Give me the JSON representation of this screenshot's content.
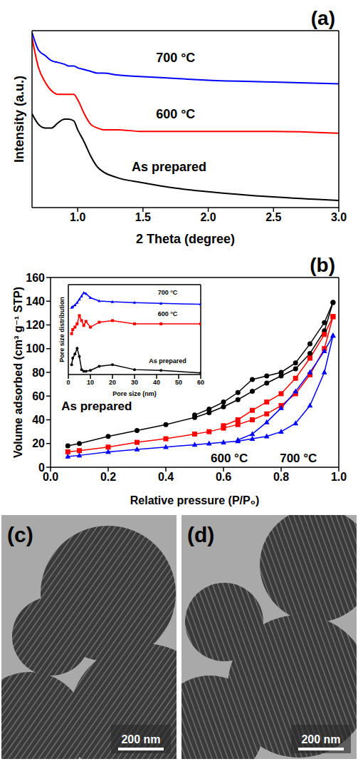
{
  "chart_data": [
    {
      "type": "line",
      "panel": "(a)",
      "xlabel": "2 Theta (degree)",
      "ylabel": "Intensity (a.u.)",
      "x": [
        0.65,
        0.7,
        0.75,
        0.8,
        0.85,
        0.9,
        0.93,
        0.97,
        1.0,
        1.05,
        1.1,
        1.15,
        1.2,
        1.3,
        1.5,
        1.75,
        2.0,
        2.5,
        3.0
      ],
      "series": [
        {
          "color": "#0000ff",
          "values": [
            99,
            89,
            86,
            83,
            82,
            81,
            80,
            80,
            79,
            78,
            77,
            76,
            76,
            75,
            74,
            73,
            72,
            71,
            70
          ]
        },
        {
          "color": "#ff0000",
          "values": [
            96,
            79,
            71,
            66,
            64,
            64,
            64,
            64,
            61,
            53,
            47,
            45,
            44,
            44,
            43,
            43,
            43,
            43,
            42
          ]
        },
        {
          "color": "#000000",
          "values": [
            53,
            47,
            45,
            45,
            48,
            50,
            50,
            49,
            44,
            37,
            29,
            23,
            20,
            17,
            14,
            11,
            9,
            6,
            4
          ]
        }
      ],
      "xlim": [
        0.65,
        3.0
      ],
      "xticks": [
        {
          "value": 1,
          "label": "1.0"
        },
        1.5,
        {
          "value": 2,
          "label": "2.0"
        },
        2.5,
        {
          "value": 3,
          "label": "3.0"
        }
      ],
      "ylim": [
        0,
        100
      ],
      "yticks": [],
      "tick_labels": "x",
      "annotations": [
        {
          "text": "700 °C",
          "x": 1.75,
          "y": 85
        },
        {
          "text": "600 °C",
          "x": 1.75,
          "y": 53
        },
        {
          "text": "As prepared",
          "x": 1.7,
          "y": 23
        }
      ]
    },
    {
      "type": "line",
      "panel": "(b)",
      "xlabel": "Relative pressure (P/P₀)",
      "ylabel": "Volume adsorbed (cm³ g⁻¹ STP)",
      "x": [
        0.06,
        0.1,
        0.2,
        0.3,
        0.4,
        0.5,
        0.55,
        0.6,
        0.65,
        0.7,
        0.75,
        0.8,
        0.85,
        0.9,
        0.95,
        0.98
      ],
      "series": [
        {
          "color": "#000000",
          "marker": "circle",
          "values": [
            18,
            20,
            26,
            31,
            36,
            42,
            46,
            51,
            57,
            64,
            71,
            77,
            83,
            96,
            115,
            139
          ],
          "desorption": [
            null,
            null,
            null,
            null,
            null,
            44,
            49,
            55,
            63,
            74,
            77,
            80,
            88,
            104,
            122,
            139
          ]
        },
        {
          "color": "#ff0000",
          "marker": "square",
          "values": [
            13,
            14,
            17,
            21,
            24,
            28,
            30,
            33,
            36,
            40,
            45,
            52,
            62,
            78,
            100,
            127
          ],
          "desorption": [
            null,
            null,
            null,
            null,
            null,
            null,
            null,
            35,
            40,
            48,
            55,
            62,
            75,
            92,
            112,
            127
          ]
        },
        {
          "color": "#0000ff",
          "marker": "triangle",
          "values": [
            9,
            10,
            13,
            15,
            17,
            19,
            20,
            21,
            22,
            24,
            26,
            30,
            37,
            52,
            80,
            111
          ],
          "desorption": [
            null,
            null,
            null,
            null,
            null,
            null,
            null,
            null,
            23,
            28,
            38,
            50,
            64,
            80,
            98,
            111
          ]
        }
      ],
      "xlim": [
        0,
        1
      ],
      "xticks": [
        {
          "value": 0,
          "label": "0.0"
        },
        0.2,
        0.4,
        0.6,
        0.8,
        {
          "value": 1,
          "label": "1.0"
        }
      ],
      "ylim": [
        0,
        160
      ],
      "yticks": [
        0,
        20,
        40,
        60,
        80,
        100,
        120,
        140,
        160
      ],
      "annotations": [
        {
          "text": "As prepared",
          "x": 0.16,
          "y": 52
        },
        {
          "text": "600 °C",
          "x": 0.62,
          "y": 8
        },
        {
          "text": "700 °C",
          "x": 0.86,
          "y": 8
        }
      ]
    },
    {
      "type": "line",
      "xlabel": "Pore size (nm)",
      "ylabel": "Pore size distribution",
      "x": [
        1.5,
        2,
        3,
        4,
        5,
        6,
        7,
        8,
        10,
        14,
        20,
        30,
        42,
        60
      ],
      "series": [
        {
          "color": "#0000ff",
          "marker": "triangle",
          "values": [
            82,
            83,
            85,
            88,
            92,
            96,
            100,
            99,
            94,
            90,
            89,
            88,
            87,
            86
          ]
        },
        {
          "color": "#ff0000",
          "marker": "square",
          "values": [
            50,
            55,
            58,
            62,
            72,
            66,
            60,
            65,
            58,
            64,
            66,
            62,
            62,
            62
          ]
        },
        {
          "color": "#000000",
          "marker": "circle",
          "values": [
            12,
            20,
            25,
            32,
            22,
            6,
            4,
            4,
            5,
            10,
            12,
            6,
            5,
            2
          ]
        }
      ],
      "xlim": [
        0,
        60
      ],
      "xticks": [
        0,
        10,
        20,
        30,
        40,
        50,
        60
      ],
      "ylim": [
        0,
        110
      ],
      "yticks": [],
      "tick_labels": "x",
      "annotations": [
        {
          "text": "700 °C",
          "x": 45,
          "y": 101
        },
        {
          "text": "600 °C",
          "x": 45,
          "y": 74
        },
        {
          "text": "As prepared",
          "x": 45,
          "y": 17
        }
      ]
    }
  ],
  "images": [
    {
      "label": "(c)",
      "scale_bar": "200 nm"
    },
    {
      "label": "(d)",
      "scale_bar": "200 nm"
    }
  ]
}
